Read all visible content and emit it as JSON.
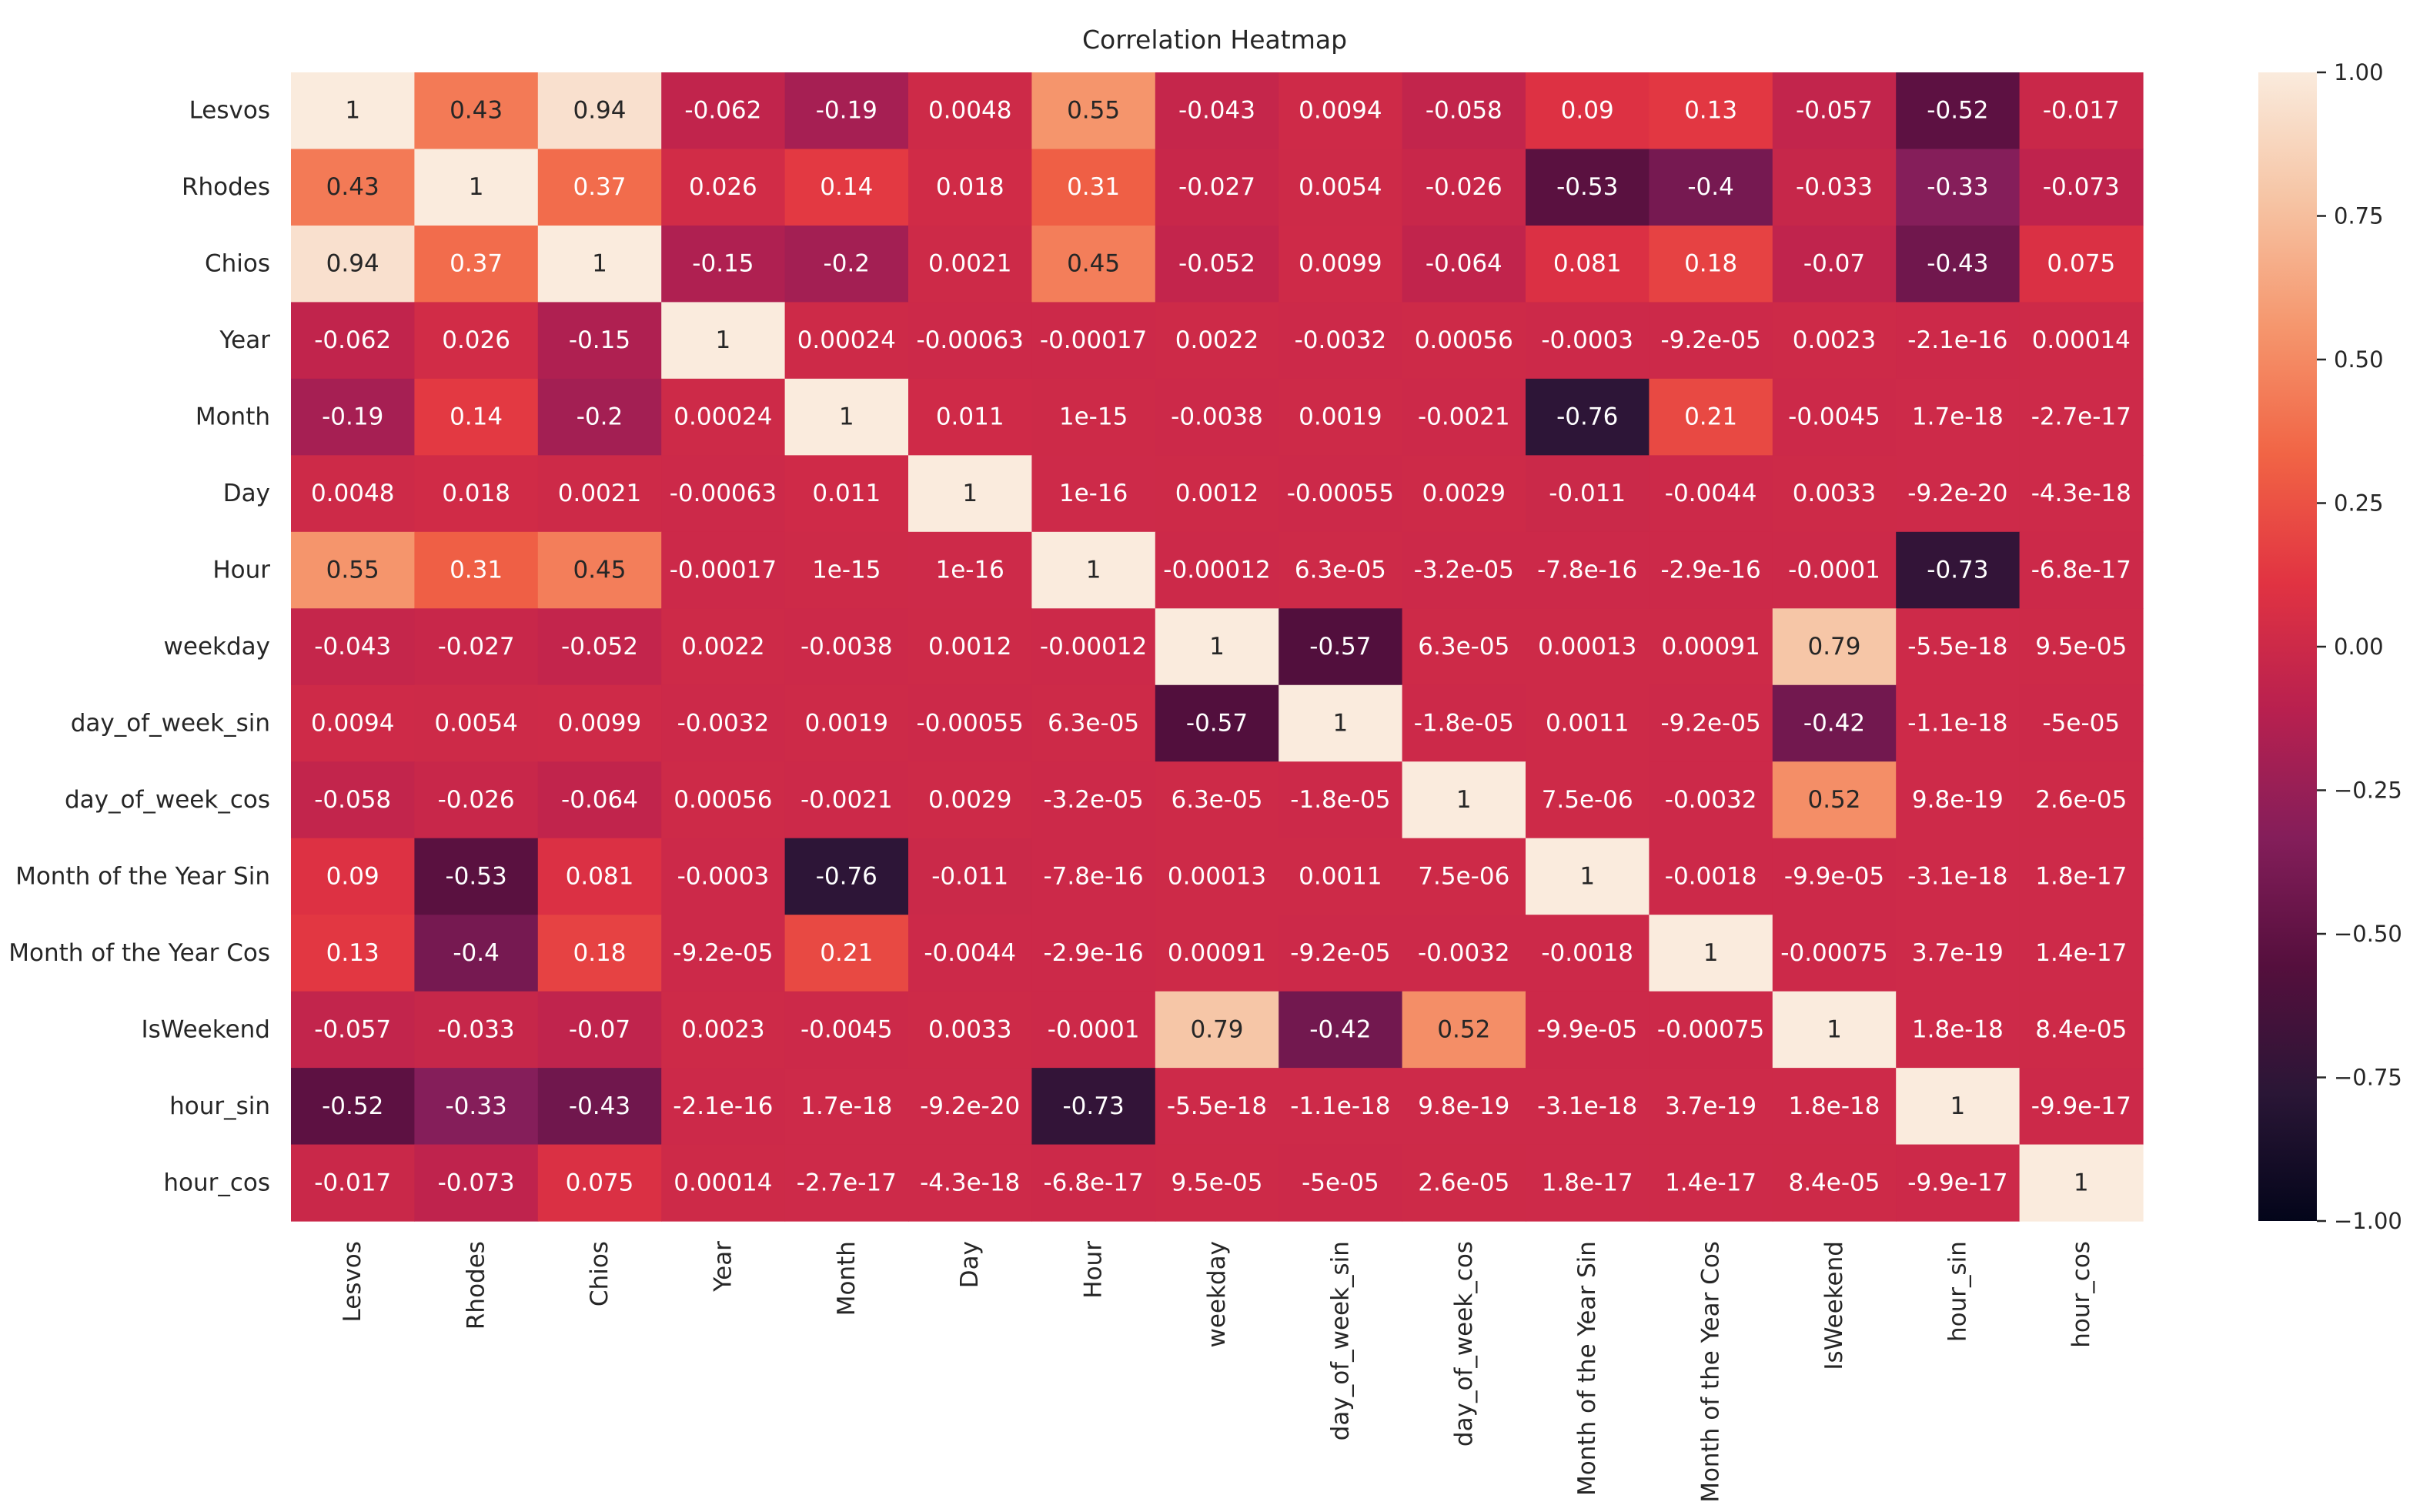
{
  "chart_data": {
    "type": "heatmap",
    "title": "Correlation Heatmap",
    "variables": [
      "Lesvos",
      "Rhodes",
      "Chios",
      "Year",
      "Month",
      "Day",
      "Hour",
      "weekday",
      "day_of_week_sin",
      "day_of_week_cos",
      "Month of the Year Sin",
      "Month of the Year Cos",
      "IsWeekend",
      "hour_sin",
      "hour_cos"
    ],
    "values": [
      [
        1,
        0.43,
        0.94,
        -0.062,
        -0.19,
        0.0048,
        0.55,
        -0.043,
        0.0094,
        -0.058,
        0.09,
        0.13,
        -0.057,
        -0.52,
        -0.017
      ],
      [
        0.43,
        1,
        0.37,
        0.026,
        0.14,
        0.018,
        0.31,
        -0.027,
        0.0054,
        -0.026,
        -0.53,
        -0.4,
        -0.033,
        -0.33,
        -0.073
      ],
      [
        0.94,
        0.37,
        1,
        -0.15,
        -0.2,
        0.0021,
        0.45,
        -0.052,
        0.0099,
        -0.064,
        0.081,
        0.18,
        -0.07,
        -0.43,
        0.075
      ],
      [
        -0.062,
        0.026,
        -0.15,
        1,
        0.00024,
        -0.00063,
        -0.00017,
        0.0022,
        -0.0032,
        0.00056,
        -0.0003,
        -9.2e-05,
        0.0023,
        -2.1e-16,
        0.00014
      ],
      [
        -0.19,
        0.14,
        -0.2,
        0.00024,
        1,
        0.011,
        1e-15,
        -0.0038,
        0.0019,
        -0.0021,
        -0.76,
        0.21,
        -0.0045,
        1.7e-18,
        -2.7e-17
      ],
      [
        0.0048,
        0.018,
        0.0021,
        -0.00063,
        0.011,
        1,
        1e-16,
        0.0012,
        -0.00055,
        0.0029,
        -0.011,
        -0.0044,
        0.0033,
        -9.2e-20,
        -4.3e-18
      ],
      [
        0.55,
        0.31,
        0.45,
        -0.00017,
        1e-15,
        1e-16,
        1,
        -0.00012,
        6.3e-05,
        -3.2e-05,
        -7.8e-16,
        -2.9e-16,
        -0.0001,
        -0.73,
        -6.8e-17
      ],
      [
        -0.043,
        -0.027,
        -0.052,
        0.0022,
        -0.0038,
        0.0012,
        -0.00012,
        1,
        -0.57,
        6.3e-05,
        0.00013,
        0.00091,
        0.79,
        -5.5e-18,
        9.5e-05
      ],
      [
        0.0094,
        0.0054,
        0.0099,
        -0.0032,
        0.0019,
        -0.00055,
        6.3e-05,
        -0.57,
        1,
        -1.8e-05,
        0.0011,
        -9.2e-05,
        -0.42,
        -1.1e-18,
        -5e-05
      ],
      [
        -0.058,
        -0.026,
        -0.064,
        0.00056,
        -0.0021,
        0.0029,
        -3.2e-05,
        6.3e-05,
        -1.8e-05,
        1,
        7.5e-06,
        -0.0032,
        0.52,
        9.8e-19,
        2.6e-05
      ],
      [
        0.09,
        -0.53,
        0.081,
        -0.0003,
        -0.76,
        -0.011,
        -7.8e-16,
        0.00013,
        0.0011,
        7.5e-06,
        1,
        -0.0018,
        -9.9e-05,
        -3.1e-18,
        1.8e-17
      ],
      [
        0.13,
        -0.4,
        0.18,
        -9.2e-05,
        0.21,
        -0.0044,
        -2.9e-16,
        0.00091,
        -9.2e-05,
        -0.0032,
        -0.0018,
        1,
        -0.00075,
        3.7e-19,
        1.4e-17
      ],
      [
        -0.057,
        -0.033,
        -0.07,
        0.0023,
        -0.0045,
        0.0033,
        -0.0001,
        0.79,
        -0.42,
        0.52,
        -9.9e-05,
        -0.00075,
        1,
        1.8e-18,
        8.4e-05
      ],
      [
        -0.52,
        -0.33,
        -0.43,
        -2.1e-16,
        1.7e-18,
        -9.2e-20,
        -0.73,
        -5.5e-18,
        -1.1e-18,
        9.8e-19,
        -3.1e-18,
        3.7e-19,
        1.8e-18,
        1,
        -9.9e-17
      ],
      [
        -0.017,
        -0.073,
        0.075,
        0.00014,
        -2.7e-17,
        -4.3e-18,
        -6.8e-17,
        9.5e-05,
        -5e-05,
        2.6e-05,
        1.8e-17,
        1.4e-17,
        8.4e-05,
        -9.9e-17,
        1
      ]
    ],
    "annotations": [
      [
        "1",
        "0.43",
        "0.94",
        "-0.062",
        "-0.19",
        "0.0048",
        "0.55",
        "-0.043",
        "0.0094",
        "-0.058",
        "0.09",
        "0.13",
        "-0.057",
        "-0.52",
        "-0.017"
      ],
      [
        "0.43",
        "1",
        "0.37",
        "0.026",
        "0.14",
        "0.018",
        "0.31",
        "-0.027",
        "0.0054",
        "-0.026",
        "-0.53",
        "-0.4",
        "-0.033",
        "-0.33",
        "-0.073"
      ],
      [
        "0.94",
        "0.37",
        "1",
        "-0.15",
        "-0.2",
        "0.0021",
        "0.45",
        "-0.052",
        "0.0099",
        "-0.064",
        "0.081",
        "0.18",
        "-0.07",
        "-0.43",
        "0.075"
      ],
      [
        "-0.062",
        "0.026",
        "-0.15",
        "1",
        "0.00024",
        "-0.00063",
        "-0.00017",
        "0.0022",
        "-0.0032",
        "0.00056",
        "-0.0003",
        "-9.2e-05",
        "0.0023",
        "-2.1e-16",
        "0.00014"
      ],
      [
        "-0.19",
        "0.14",
        "-0.2",
        "0.00024",
        "1",
        "0.011",
        "1e-15",
        "-0.0038",
        "0.0019",
        "-0.0021",
        "-0.76",
        "0.21",
        "-0.0045",
        "1.7e-18",
        "-2.7e-17"
      ],
      [
        "0.0048",
        "0.018",
        "0.0021",
        "-0.00063",
        "0.011",
        "1",
        "1e-16",
        "0.0012",
        "-0.00055",
        "0.0029",
        "-0.011",
        "-0.0044",
        "0.0033",
        "-9.2e-20",
        "-4.3e-18"
      ],
      [
        "0.55",
        "0.31",
        "0.45",
        "-0.00017",
        "1e-15",
        "1e-16",
        "1",
        "-0.00012",
        "6.3e-05",
        "-3.2e-05",
        "-7.8e-16",
        "-2.9e-16",
        "-0.0001",
        "-0.73",
        "-6.8e-17"
      ],
      [
        "-0.043",
        "-0.027",
        "-0.052",
        "0.0022",
        "-0.0038",
        "0.0012",
        "-0.00012",
        "1",
        "-0.57",
        "6.3e-05",
        "0.00013",
        "0.00091",
        "0.79",
        "-5.5e-18",
        "9.5e-05"
      ],
      [
        "0.0094",
        "0.0054",
        "0.0099",
        "-0.0032",
        "0.0019",
        "-0.00055",
        "6.3e-05",
        "-0.57",
        "1",
        "-1.8e-05",
        "0.0011",
        "-9.2e-05",
        "-0.42",
        "-1.1e-18",
        "-5e-05"
      ],
      [
        "-0.058",
        "-0.026",
        "-0.064",
        "0.00056",
        "-0.0021",
        "0.0029",
        "-3.2e-05",
        "6.3e-05",
        "-1.8e-05",
        "1",
        "7.5e-06",
        "-0.0032",
        "0.52",
        "9.8e-19",
        "2.6e-05"
      ],
      [
        "0.09",
        "-0.53",
        "0.081",
        "-0.0003",
        "-0.76",
        "-0.011",
        "-7.8e-16",
        "0.00013",
        "0.0011",
        "7.5e-06",
        "1",
        "-0.0018",
        "-9.9e-05",
        "-3.1e-18",
        "1.8e-17"
      ],
      [
        "0.13",
        "-0.4",
        "0.18",
        "-9.2e-05",
        "0.21",
        "-0.0044",
        "-2.9e-16",
        "0.00091",
        "-9.2e-05",
        "-0.0032",
        "-0.0018",
        "1",
        "-0.00075",
        "3.7e-19",
        "1.4e-17"
      ],
      [
        "-0.057",
        "-0.033",
        "-0.07",
        "0.0023",
        "-0.0045",
        "0.0033",
        "-0.0001",
        "0.79",
        "-0.42",
        "0.52",
        "-9.9e-05",
        "-0.00075",
        "1",
        "1.8e-18",
        "8.4e-05"
      ],
      [
        "-0.52",
        "-0.33",
        "-0.43",
        "-2.1e-16",
        "1.7e-18",
        "-9.2e-20",
        "-0.73",
        "-5.5e-18",
        "-1.1e-18",
        "9.8e-19",
        "-3.1e-18",
        "3.7e-19",
        "1.8e-18",
        "1",
        "-9.9e-17"
      ],
      [
        "-0.017",
        "-0.073",
        "0.075",
        "0.00014",
        "-2.7e-17",
        "-4.3e-18",
        "-6.8e-17",
        "9.5e-05",
        "-5e-05",
        "2.6e-05",
        "1.8e-17",
        "1.4e-17",
        "8.4e-05",
        "-9.9e-17",
        "1"
      ]
    ],
    "colorbar": {
      "vmin": -1.0,
      "vmax": 1.0,
      "ticks": [
        1.0,
        0.75,
        0.5,
        0.25,
        0.0,
        -0.25,
        -0.5,
        -0.75,
        -1.0
      ],
      "tick_labels": [
        "1.00",
        "0.75",
        "0.50",
        "0.25",
        "0.00",
        "−0.25",
        "−0.50",
        "−0.75",
        "−1.00"
      ],
      "colormap": "rocket",
      "colormap_stops": [
        "#03051a",
        "#2a1636",
        "#550f3d",
        "#841e5a",
        "#b8204f",
        "#e13342",
        "#f16445",
        "#f5966d",
        "#f6c4a4",
        "#faebdd"
      ]
    },
    "xlabel": "",
    "ylabel": ""
  }
}
